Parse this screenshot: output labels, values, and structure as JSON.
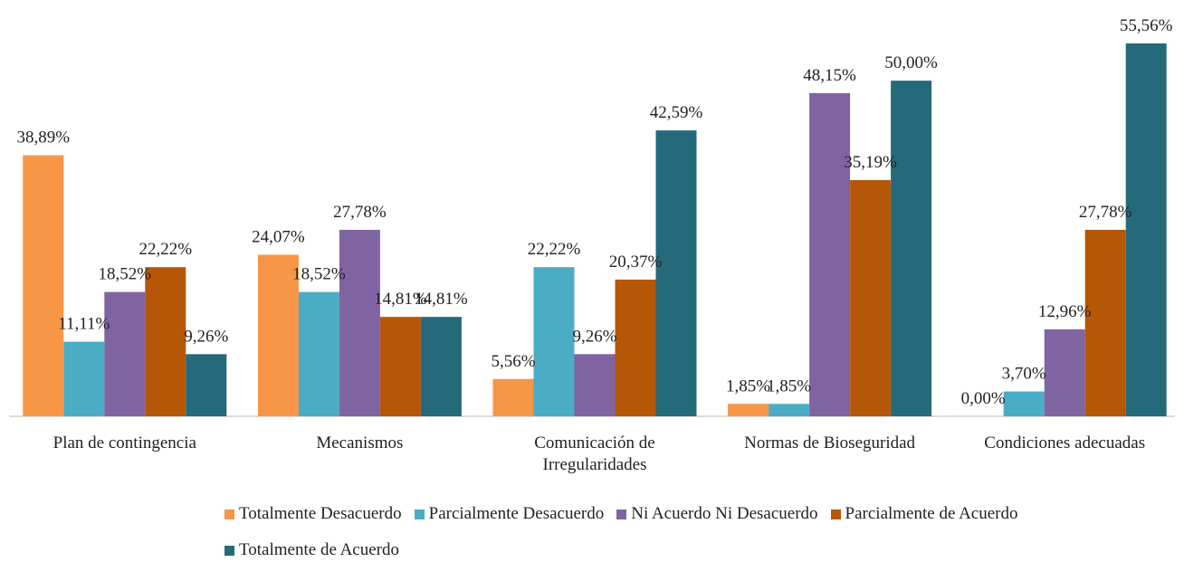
{
  "chart_data": {
    "type": "bar",
    "categories": [
      "Plan de contingencia",
      "Mecanismos",
      "Comunicación de Irregularidades",
      "Normas de Bioseguridad",
      "Condiciones adecuadas"
    ],
    "ylim": [
      0,
      60
    ],
    "legend": "bottom",
    "series": [
      {
        "name": "Totalmente Desacuerdo",
        "color": "#f79646",
        "values": [
          38.89,
          24.07,
          5.56,
          1.85,
          0.0
        ],
        "value_labels": [
          "38,89%",
          "24,07%",
          "5,56%",
          "1,85%",
          "0,00%"
        ]
      },
      {
        "name": "Parcialmente Desacuerdo",
        "color": "#4bacc6",
        "values": [
          11.11,
          18.52,
          22.22,
          1.85,
          3.7
        ],
        "value_labels": [
          "11,11%",
          "18,52%",
          "22,22%",
          "1,85%",
          "3,70%"
        ]
      },
      {
        "name": "Ni Acuerdo Ni Desacuerdo",
        "color": "#8064a2",
        "values": [
          18.52,
          27.78,
          9.26,
          48.15,
          12.96
        ],
        "value_labels": [
          "18,52%",
          "27,78%",
          "9,26%",
          "48,15%",
          "12,96%"
        ]
      },
      {
        "name": "Parcialmente de Acuerdo",
        "color": "#b65708",
        "values": [
          22.22,
          14.81,
          20.37,
          35.19,
          27.78
        ],
        "value_labels": [
          "22,22%",
          "14,81%",
          "20,37%",
          "35,19%",
          "27,78%"
        ]
      },
      {
        "name": "Totalmente de Acuerdo",
        "color": "#256a7a",
        "values": [
          9.26,
          14.81,
          42.59,
          50.0,
          55.56
        ],
        "value_labels": [
          "9,26%",
          "14,81%",
          "42,59%",
          "50,00%",
          "55,56%"
        ]
      }
    ]
  }
}
